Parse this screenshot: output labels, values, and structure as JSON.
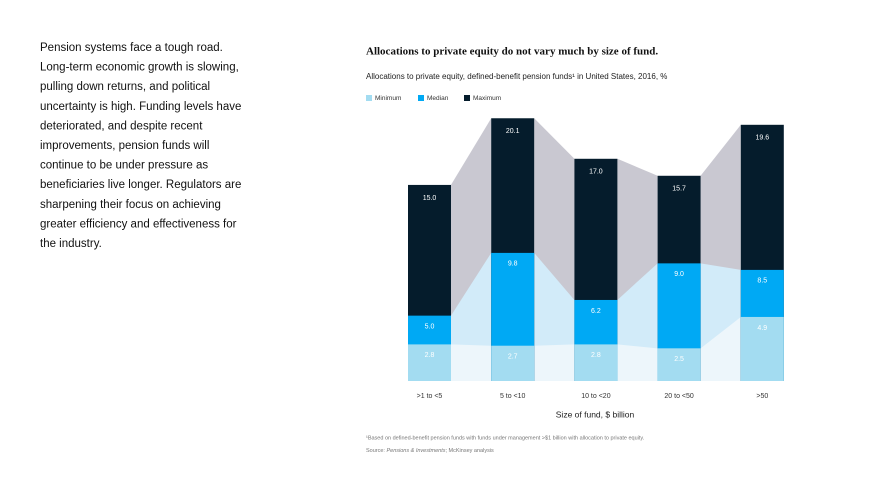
{
  "text": {
    "lines": [
      "Pension systems face a tough road.",
      "Long-term economic growth is slowing,",
      "pulling down returns, and political",
      "uncertainty is high. Funding levels have",
      "deteriorated, and despite recent",
      "improvements, pension funds will",
      "continue to be under pressure as",
      "beneficiaries live longer. Regulators are",
      "sharpening their focus on achieving",
      "greater efficiency and effectiveness for",
      "the industry."
    ]
  },
  "chart_data": {
    "type": "overlap_bar",
    "title": "Allocations to private equity do not vary much by size of fund.",
    "subtitle": "Allocations to private equity, defined-benefit pension funds¹ in United States, 2016, %",
    "x_label": "Size of fund, $ billion",
    "categories": [
      ">1 to <5",
      "5 to <10",
      "10 to <20",
      "20 to <50",
      ">50"
    ],
    "series": [
      {
        "name": "Minimum",
        "color": "#a3dcf1",
        "band_color": "#edf6fb",
        "values": [
          2.8,
          2.7,
          2.8,
          2.5,
          4.9
        ],
        "value_labels": [
          "2.8",
          "2.7",
          "2.8",
          "2.5",
          "4.9"
        ]
      },
      {
        "name": "Median",
        "color": "#00a9f4",
        "band_color": "#d2ebf9",
        "values": [
          5.0,
          9.8,
          6.2,
          9.0,
          8.5
        ],
        "value_labels": [
          "5.0",
          "9.8",
          "6.2",
          "9.0",
          "8.5"
        ]
      },
      {
        "name": "Maximum",
        "color": "#051c2c",
        "band_color": "#c9c8d1",
        "values": [
          15.0,
          20.1,
          17.0,
          15.7,
          19.6
        ],
        "value_labels": [
          "15.0",
          "20.1",
          "17.0",
          "15.7",
          "19.6"
        ]
      }
    ],
    "ylim": [
      0,
      21
    ],
    "footnote": "¹Based on defined-benefit pension funds with funds under management >$1 billion with allocation to private equity.",
    "source": {
      "label": "Source: ",
      "italic": "Pensions & Investments",
      "rest": "; McKinsey analysis"
    }
  }
}
